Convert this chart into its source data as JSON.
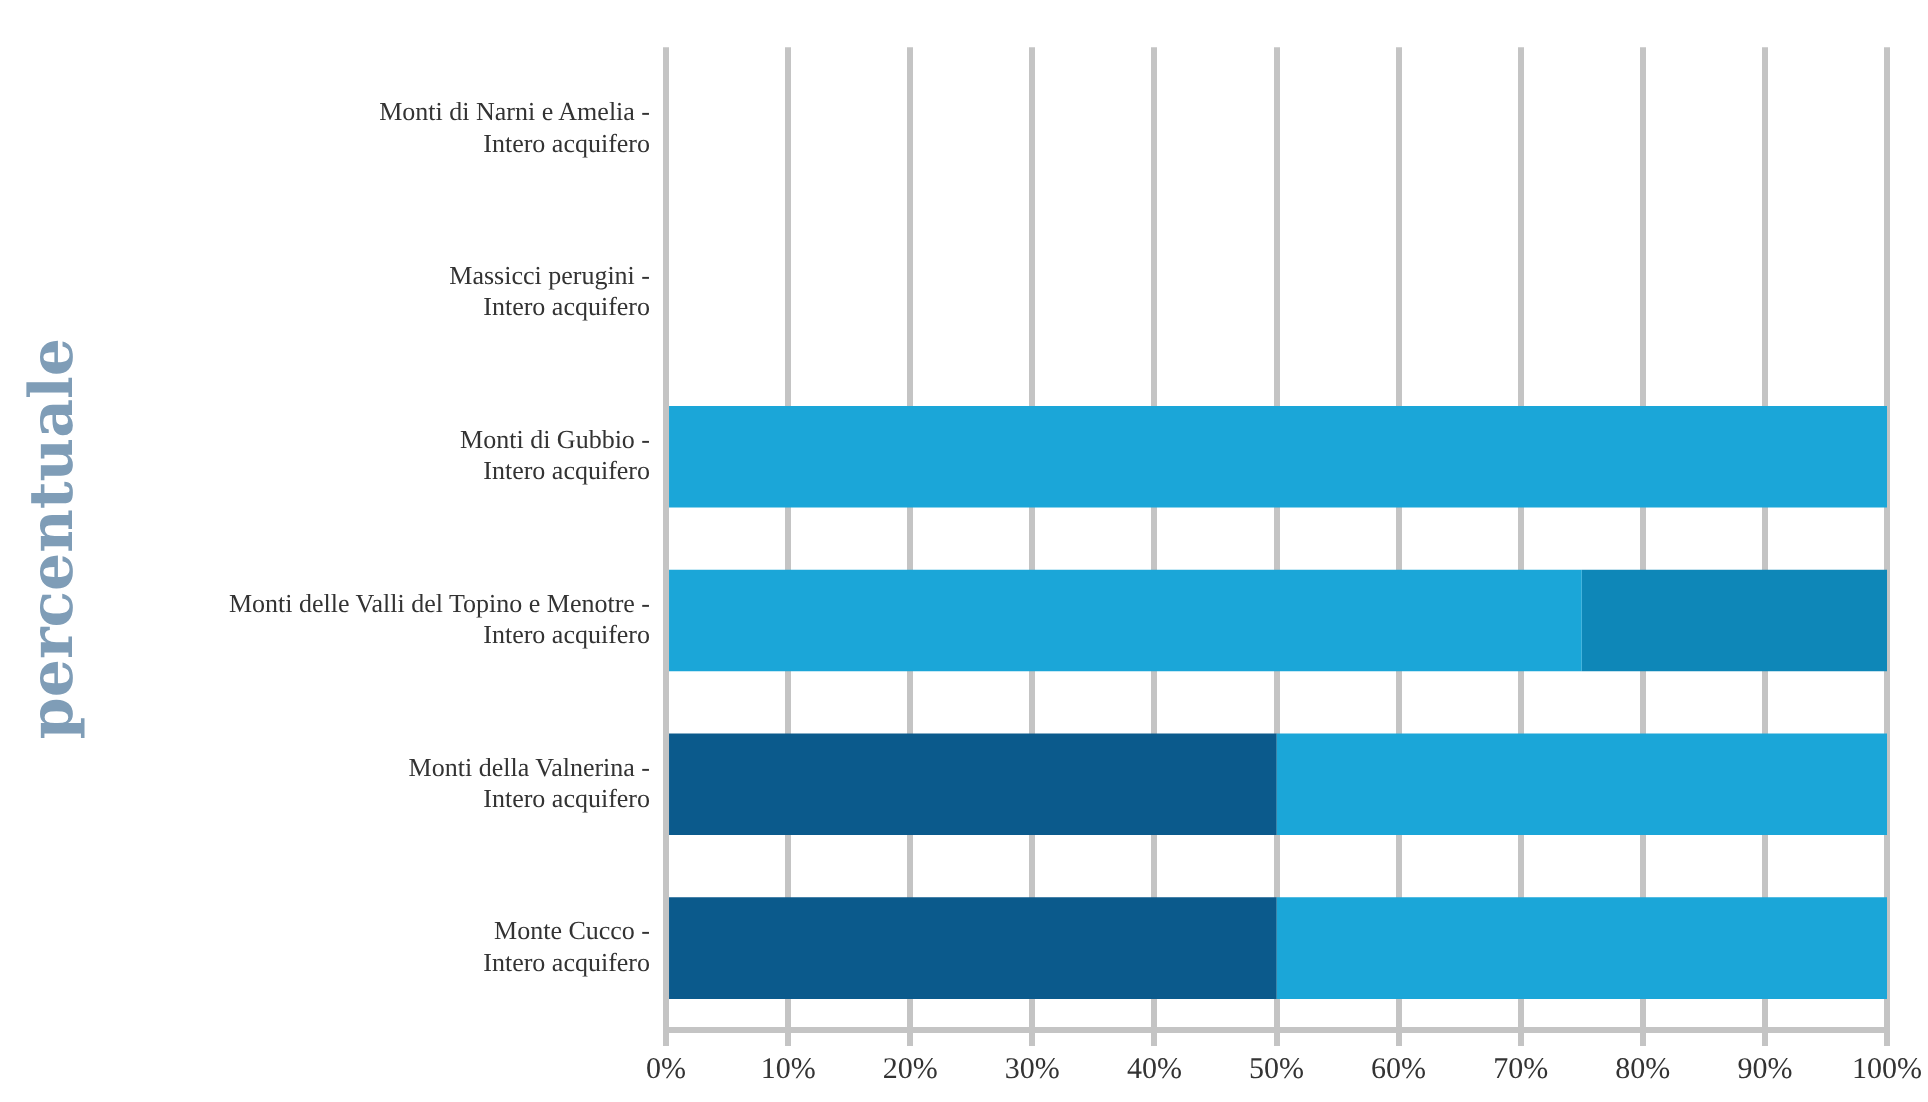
{
  "chart_data": {
    "type": "bar",
    "orientation": "horizontal",
    "stacked": true,
    "ylabel": "percentuale",
    "categories": [
      "Monti di Narni e Amelia -\nIntero acquifero",
      "Massicci perugini -\nIntero acquifero",
      "Monti di Gubbio -\nIntero acquifero",
      "Monti delle Valli del Topino e Menotre -\nIntero acquifero",
      "Monti della Valnerina -\nIntero acquifero",
      "Monte Cucco -\nIntero acquifero"
    ],
    "series": [
      {
        "color": "#0b5a8c",
        "values": [
          null,
          null,
          0,
          0,
          50,
          50
        ]
      },
      {
        "color": "#1ba6d8",
        "values": [
          null,
          null,
          100,
          75,
          50,
          50
        ]
      },
      {
        "color": "#0e87b8",
        "values": [
          null,
          null,
          0,
          25,
          0,
          0
        ]
      }
    ],
    "xlim": [
      0,
      100
    ],
    "xticks": [
      {
        "value": 0,
        "label": "0%"
      },
      {
        "value": 10,
        "label": "10%"
      },
      {
        "value": 20,
        "label": "20%"
      },
      {
        "value": 30,
        "label": "30%"
      },
      {
        "value": 40,
        "label": "40%"
      },
      {
        "value": 50,
        "label": "50%"
      },
      {
        "value": 60,
        "label": "60%"
      },
      {
        "value": 70,
        "label": "70%"
      },
      {
        "value": 80,
        "label": "80%"
      },
      {
        "value": 90,
        "label": "90%"
      },
      {
        "value": 100,
        "label": "100%"
      }
    ],
    "grid": "x",
    "legend": false
  }
}
